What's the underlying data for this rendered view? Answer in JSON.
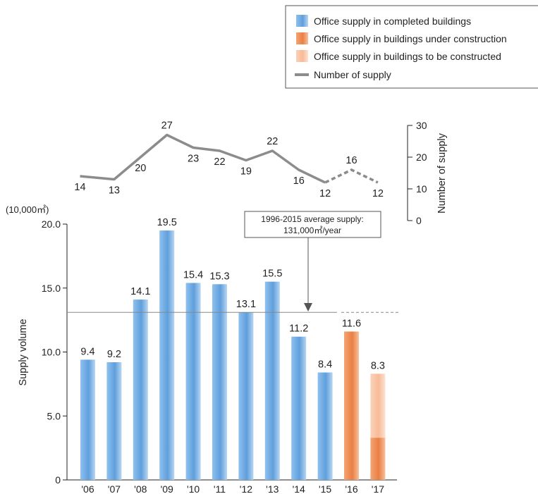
{
  "chart_data": [
    {
      "type": "bar",
      "title": "",
      "unit_label": "(10,000㎡)",
      "ylabel": "Supply volume",
      "xlabel": "",
      "ylim": [
        0,
        20
      ],
      "yticks": [
        "0",
        "5.0",
        "10.0",
        "15.0",
        "20.0"
      ],
      "categories": [
        "'06",
        "'07",
        "'08",
        "'09",
        "'10",
        "'11",
        "'12",
        "'13",
        "'14",
        "'15",
        "'16",
        "'17"
      ],
      "series": [
        {
          "name": "Office supply in completed buildings",
          "color": "#6aa8e0",
          "values": [
            9.4,
            9.2,
            14.1,
            19.5,
            15.4,
            15.3,
            13.1,
            15.5,
            11.2,
            8.4,
            0,
            0
          ]
        },
        {
          "name": "Office supply in buildings under construction",
          "color": "#ee8a50",
          "values": [
            0,
            0,
            0,
            0,
            0,
            0,
            0,
            0,
            0,
            0,
            11.6,
            3.3
          ]
        },
        {
          "name": "Office supply in buildings to be constructed",
          "color": "#f8c3a4",
          "values": [
            0,
            0,
            0,
            0,
            0,
            0,
            0,
            0,
            0,
            0,
            0,
            5.0
          ]
        }
      ],
      "bar_labels": [
        "9.4",
        "9.2",
        "14.1",
        "19.5",
        "15.4",
        "15.3",
        "13.1",
        "15.5",
        "11.2",
        "8.4",
        "11.6",
        "8.3"
      ],
      "reference_line": {
        "value": 13.1,
        "label_line1": "1996-2015 average supply:",
        "label_line2": "131,000㎡/year"
      },
      "grid": false
    },
    {
      "type": "line",
      "name": "Number of supply",
      "ylabel": "Number of supply",
      "ylim": [
        0,
        30
      ],
      "yticks": [
        "0",
        "10",
        "20",
        "30"
      ],
      "categories": [
        "'06",
        "'07",
        "'08",
        "'09",
        "'10",
        "'11",
        "'12",
        "'13",
        "'14",
        "'15",
        "'16",
        "'17"
      ],
      "values": [
        14,
        13,
        20,
        27,
        23,
        22,
        19,
        22,
        16,
        12,
        16,
        12
      ],
      "color": "#8c8c8c",
      "dashed_from_index": 9
    }
  ],
  "legend": {
    "placement": "top-right",
    "items": [
      {
        "label": "Office supply in completed buildings",
        "color": "#6aa8e0",
        "kind": "swatch"
      },
      {
        "label": "Office supply in buildings under construction",
        "color": "#ee8a50",
        "kind": "swatch"
      },
      {
        "label": "Office supply in buildings to be constructed",
        "color": "#f8c3a4",
        "kind": "swatch"
      },
      {
        "label": "Number of supply",
        "color": "#8c8c8c",
        "kind": "line"
      }
    ]
  }
}
